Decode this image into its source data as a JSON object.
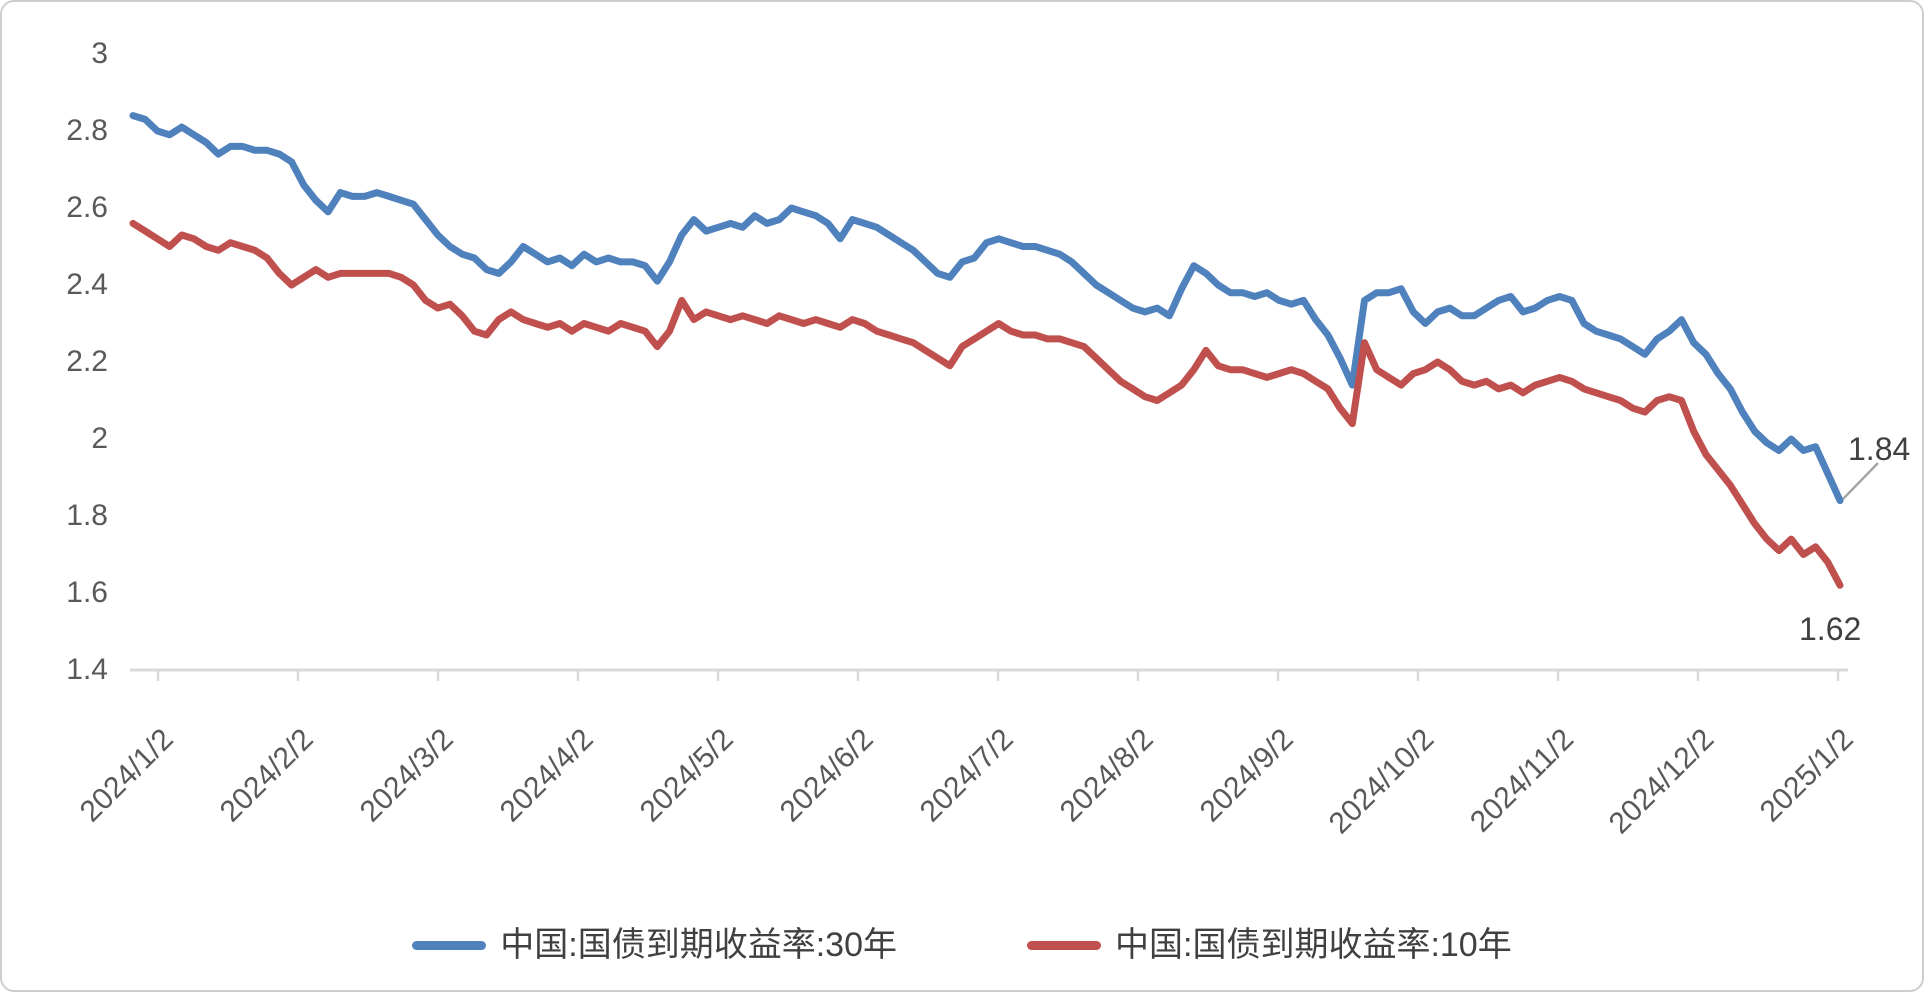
{
  "colors": {
    "series_30y": "#4f81bd",
    "series_10y": "#c0504d",
    "axis_line": "#d9d9d9",
    "tick_label": "#595959",
    "data_label": "#404040",
    "leader_line": "#a6a6a6",
    "frame_border": "#cfcdcd",
    "background": "#ffffff"
  },
  "chart_data": {
    "type": "line",
    "title": "",
    "xlabel": "",
    "ylabel": "",
    "ylim": [
      1.4,
      3.0
    ],
    "y_tick_step": 0.2,
    "grid": false,
    "legend_position": "bottom",
    "y_ticks": [
      "3",
      "2.8",
      "2.6",
      "2.4",
      "2.2",
      "2",
      "1.8",
      "1.6",
      "1.4"
    ],
    "x_labels": [
      "2024/1/2",
      "2024/2/2",
      "2024/3/2",
      "2024/4/2",
      "2024/5/2",
      "2024/6/2",
      "2024/7/2",
      "2024/8/2",
      "2024/9/2",
      "2024/10/2",
      "2024/11/2",
      "2024/12/2",
      "2025/1/2"
    ],
    "series": [
      {
        "name": "中国:国债到期收益率:30年",
        "color": "#4f81bd",
        "end_label": "1.84",
        "values": [
          2.84,
          2.83,
          2.8,
          2.79,
          2.81,
          2.79,
          2.77,
          2.74,
          2.76,
          2.76,
          2.75,
          2.75,
          2.74,
          2.72,
          2.66,
          2.62,
          2.59,
          2.64,
          2.63,
          2.63,
          2.64,
          2.63,
          2.62,
          2.61,
          2.57,
          2.53,
          2.5,
          2.48,
          2.47,
          2.44,
          2.43,
          2.46,
          2.5,
          2.48,
          2.46,
          2.47,
          2.45,
          2.48,
          2.46,
          2.47,
          2.46,
          2.46,
          2.45,
          2.41,
          2.46,
          2.53,
          2.57,
          2.54,
          2.55,
          2.56,
          2.55,
          2.58,
          2.56,
          2.57,
          2.6,
          2.59,
          2.58,
          2.56,
          2.52,
          2.57,
          2.56,
          2.55,
          2.53,
          2.51,
          2.49,
          2.46,
          2.43,
          2.42,
          2.46,
          2.47,
          2.51,
          2.52,
          2.51,
          2.5,
          2.5,
          2.49,
          2.48,
          2.46,
          2.43,
          2.4,
          2.38,
          2.36,
          2.34,
          2.33,
          2.34,
          2.32,
          2.39,
          2.45,
          2.43,
          2.4,
          2.38,
          2.38,
          2.37,
          2.38,
          2.36,
          2.35,
          2.36,
          2.31,
          2.27,
          2.21,
          2.14,
          2.36,
          2.38,
          2.38,
          2.39,
          2.33,
          2.3,
          2.33,
          2.34,
          2.32,
          2.32,
          2.34,
          2.36,
          2.37,
          2.33,
          2.34,
          2.36,
          2.37,
          2.36,
          2.3,
          2.28,
          2.27,
          2.26,
          2.24,
          2.22,
          2.26,
          2.28,
          2.31,
          2.25,
          2.22,
          2.17,
          2.13,
          2.07,
          2.02,
          1.99,
          1.97,
          2.0,
          1.97,
          1.98,
          1.91,
          1.84
        ]
      },
      {
        "name": "中国:国债到期收益率:10年",
        "color": "#c0504d",
        "end_label": "1.62",
        "values": [
          2.56,
          2.54,
          2.52,
          2.5,
          2.53,
          2.52,
          2.5,
          2.49,
          2.51,
          2.5,
          2.49,
          2.47,
          2.43,
          2.4,
          2.42,
          2.44,
          2.42,
          2.43,
          2.43,
          2.43,
          2.43,
          2.43,
          2.42,
          2.4,
          2.36,
          2.34,
          2.35,
          2.32,
          2.28,
          2.27,
          2.31,
          2.33,
          2.31,
          2.3,
          2.29,
          2.3,
          2.28,
          2.3,
          2.29,
          2.28,
          2.3,
          2.29,
          2.28,
          2.24,
          2.28,
          2.36,
          2.31,
          2.33,
          2.32,
          2.31,
          2.32,
          2.31,
          2.3,
          2.32,
          2.31,
          2.3,
          2.31,
          2.3,
          2.29,
          2.31,
          2.3,
          2.28,
          2.27,
          2.26,
          2.25,
          2.23,
          2.21,
          2.19,
          2.24,
          2.26,
          2.28,
          2.3,
          2.28,
          2.27,
          2.27,
          2.26,
          2.26,
          2.25,
          2.24,
          2.21,
          2.18,
          2.15,
          2.13,
          2.11,
          2.1,
          2.12,
          2.14,
          2.18,
          2.23,
          2.19,
          2.18,
          2.18,
          2.17,
          2.16,
          2.17,
          2.18,
          2.17,
          2.15,
          2.13,
          2.08,
          2.04,
          2.25,
          2.18,
          2.16,
          2.14,
          2.17,
          2.18,
          2.2,
          2.18,
          2.15,
          2.14,
          2.15,
          2.13,
          2.14,
          2.12,
          2.14,
          2.15,
          2.16,
          2.15,
          2.13,
          2.12,
          2.11,
          2.1,
          2.08,
          2.07,
          2.1,
          2.11,
          2.1,
          2.02,
          1.96,
          1.92,
          1.88,
          1.83,
          1.78,
          1.74,
          1.71,
          1.74,
          1.7,
          1.72,
          1.68,
          1.62
        ]
      }
    ]
  }
}
